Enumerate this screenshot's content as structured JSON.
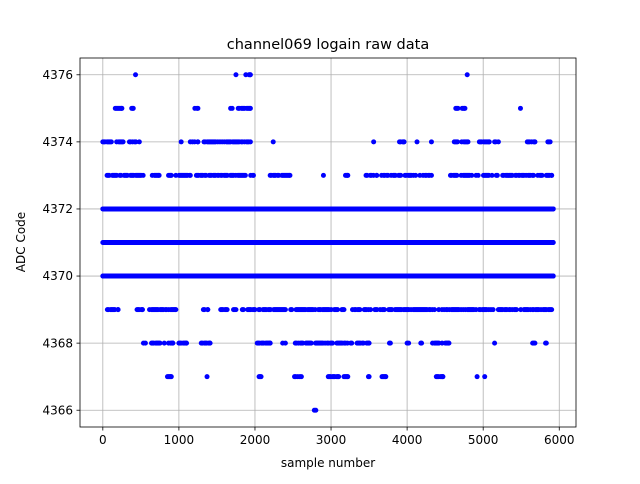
{
  "chart_data": {
    "type": "scatter",
    "title": "channel069 logain raw data",
    "xlabel": "sample number",
    "ylabel": "ADC Code",
    "xlim": [
      -300,
      6220
    ],
    "ylim": [
      4365.5,
      4376.5
    ],
    "xticks": [
      0,
      1000,
      2000,
      3000,
      4000,
      5000,
      6000
    ],
    "yticks": [
      4366,
      4368,
      4370,
      4372,
      4374,
      4376
    ],
    "grid": true,
    "marker_color": "#0000ff",
    "series": [
      {
        "n_samples": 6000,
        "y_levels": [
          4366,
          4367,
          4368,
          4369,
          4370,
          4371,
          4372,
          4373,
          4374,
          4375,
          4376
        ],
        "runs": {
          "4376": [
            [
              430,
              430
            ],
            [
              1750,
              1750
            ],
            [
              1880,
              1940
            ],
            [
              4790,
              4790
            ]
          ],
          "4375": [
            [
              150,
              250
            ],
            [
              380,
              400
            ],
            [
              1210,
              1250
            ],
            [
              1680,
              1700
            ],
            [
              1780,
              1940
            ],
            [
              4640,
              4760
            ],
            [
              5470,
              5490
            ]
          ],
          "4374": [
            [
              0,
              480
            ],
            [
              1030,
              1030
            ],
            [
              1150,
              1250
            ],
            [
              1330,
              1940
            ],
            [
              2240,
              2240
            ],
            [
              3560,
              3560
            ],
            [
              3900,
              3960
            ],
            [
              4130,
              4130
            ],
            [
              4320,
              4320
            ],
            [
              4620,
              4800
            ],
            [
              4950,
              5080
            ],
            [
              5150,
              5200
            ],
            [
              5580,
              5680
            ],
            [
              5850,
              5880
            ]
          ],
          "4373": [
            [
              0,
              530
            ],
            [
              650,
              740
            ],
            [
              850,
              900
            ],
            [
              960,
              1150
            ],
            [
              1230,
              1980
            ],
            [
              2200,
              2460
            ],
            [
              2900,
              2900
            ],
            [
              3190,
              3220
            ],
            [
              3460,
              3600
            ],
            [
              3650,
              4320
            ],
            [
              4570,
              5900
            ]
          ],
          "4372": [
            [
              0,
              5920
            ]
          ],
          "4371": [
            [
              0,
              5920
            ]
          ],
          "4370": [
            [
              0,
              5920
            ]
          ],
          "4369": [
            [
              60,
              200
            ],
            [
              450,
              520
            ],
            [
              600,
              960
            ],
            [
              1280,
              1380
            ],
            [
              1550,
              1750
            ],
            [
              1820,
              2000
            ],
            [
              2050,
              5900
            ]
          ],
          "4368": [
            [
              520,
              560
            ],
            [
              640,
              920
            ],
            [
              1000,
              1100
            ],
            [
              1280,
              1410
            ],
            [
              2030,
              2200
            ],
            [
              2350,
              2400
            ],
            [
              2530,
              3500
            ],
            [
              3740,
              3780
            ],
            [
              4000,
              4020
            ],
            [
              4180,
              4190
            ],
            [
              4320,
              4550
            ],
            [
              5150,
              5150
            ],
            [
              5650,
              5680
            ],
            [
              5820,
              5830
            ]
          ],
          "4367": [
            [
              850,
              900
            ],
            [
              1370,
              1370
            ],
            [
              2040,
              2080
            ],
            [
              2520,
              2610
            ],
            [
              2950,
              3100
            ],
            [
              3170,
              3220
            ],
            [
              3450,
              3500
            ],
            [
              3670,
              3720
            ],
            [
              4370,
              4470
            ],
            [
              4920,
              4920
            ],
            [
              5020,
              5020
            ]
          ],
          "4366": [
            [
              2780,
              2800
            ]
          ]
        }
      }
    ]
  }
}
